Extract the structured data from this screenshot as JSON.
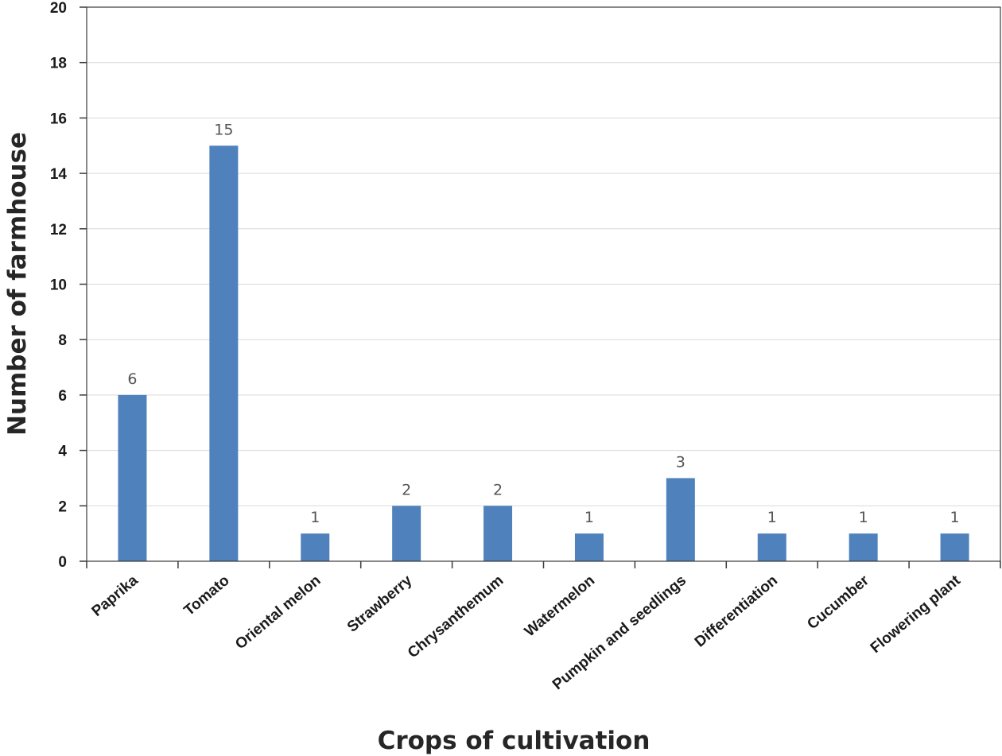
{
  "chart_data": {
    "type": "bar",
    "title": "",
    "xlabel": "Crops of cultivation",
    "ylabel": "Number of farmhouse",
    "categories": [
      "Paprika",
      "Tomato",
      "Oriental melon",
      "Strawberry",
      "Chrysanthemum",
      "Watermelon",
      "Pumpkin and seedlings",
      "Differentiation",
      "Cucumber",
      "Flowering plant"
    ],
    "values": [
      6,
      15,
      1,
      2,
      2,
      1,
      3,
      1,
      1,
      1
    ],
    "ylim": [
      0,
      20
    ],
    "yticks": [
      0,
      2,
      4,
      6,
      8,
      10,
      12,
      14,
      16,
      18,
      20
    ],
    "grid": true,
    "data_labels": true,
    "legend": "none",
    "colors": {
      "bar": "#4f81bd"
    }
  }
}
